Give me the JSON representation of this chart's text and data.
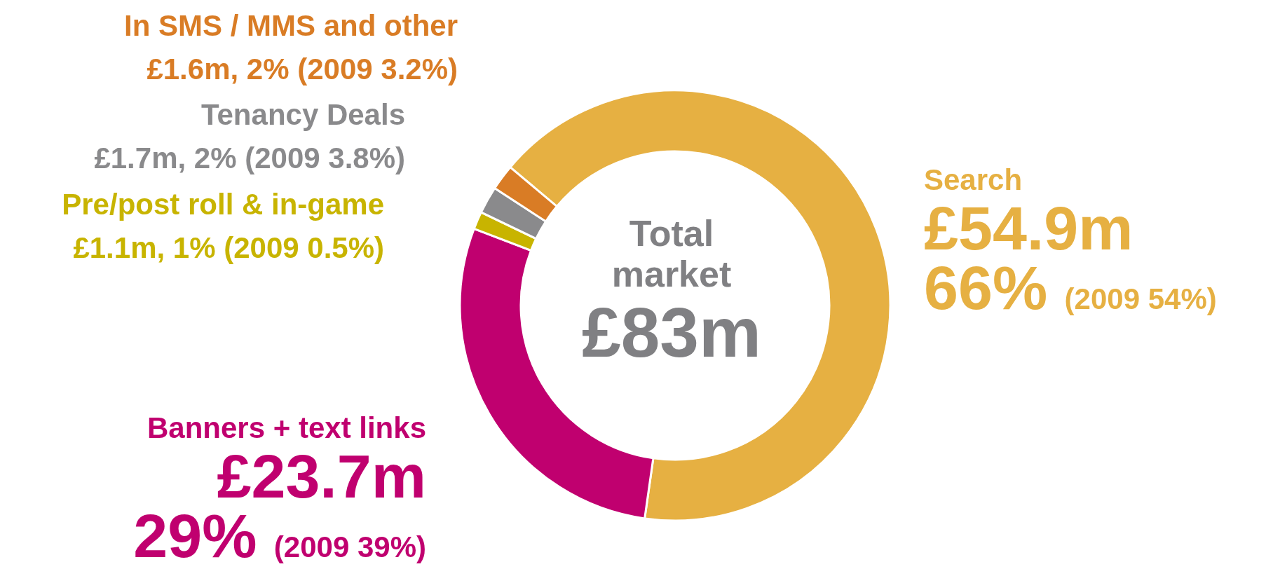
{
  "chart_data": {
    "type": "donut",
    "categories": [
      "Search",
      "Banners + text links",
      "Pre/post roll & in-game",
      "Tenancy Deals",
      "In SMS / MMS and other"
    ],
    "values": [
      54.9,
      23.7,
      1.1,
      1.7,
      1.6
    ],
    "colors": [
      "#e6b042",
      "#c0006f",
      "#c8b400",
      "#8a8a8c",
      "#d97c25"
    ],
    "value_labels": [
      "£54.9m",
      "£23.7m",
      "£1.1m, 1% (2009 0.5%)",
      "£1.7m, 2% (2009 3.8%)",
      "£1.6m, 2% (2009 3.2%)"
    ],
    "annotations": [
      "Total market",
      "£83m",
      "66% (2009 54%)",
      "29% (2009 39%)"
    ]
  }
}
